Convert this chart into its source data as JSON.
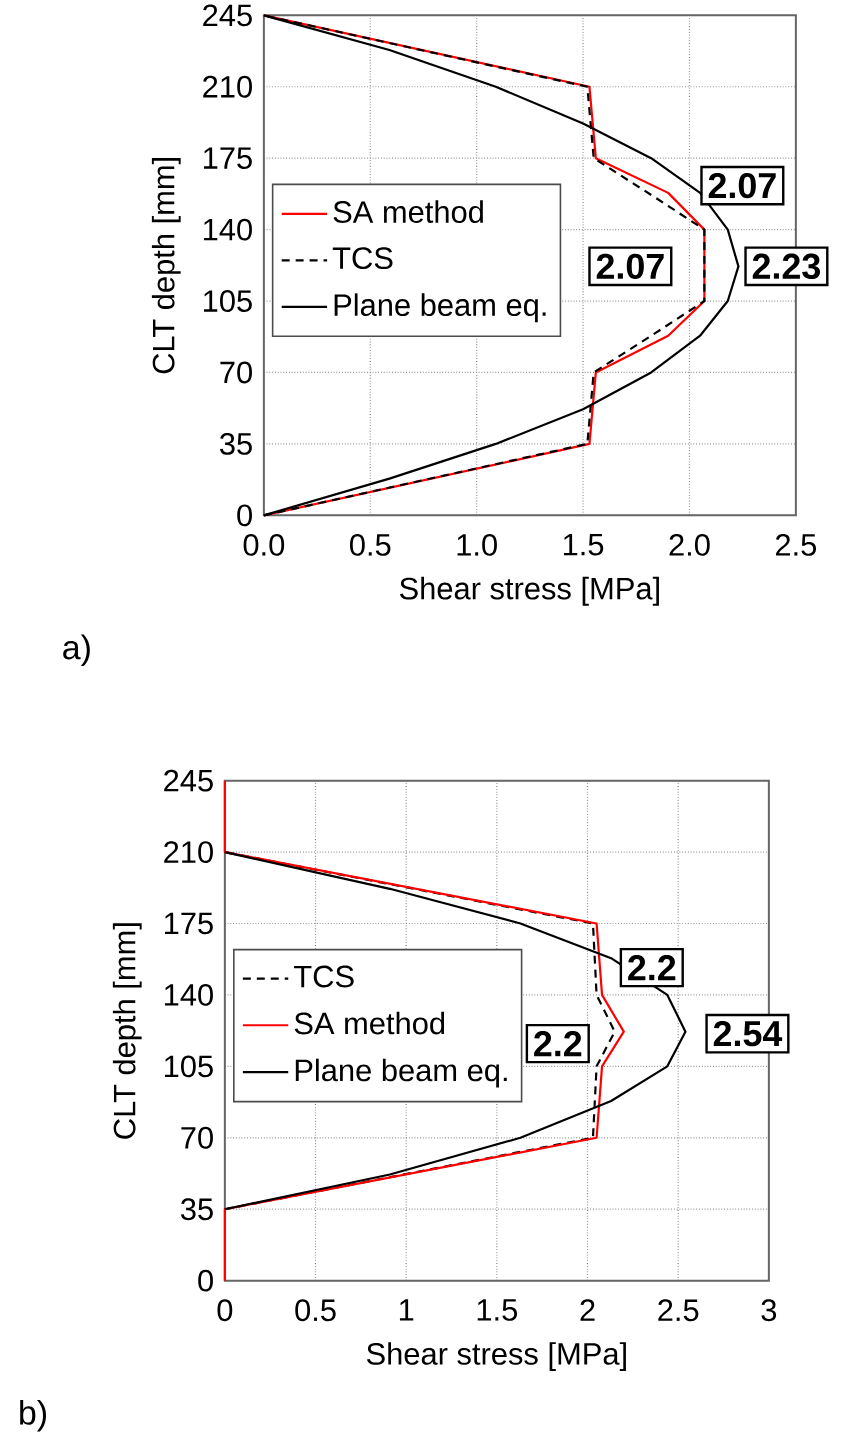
{
  "chart_data": [
    {
      "type": "line",
      "xlabel": "Shear stress [MPa]",
      "ylabel": "CLT depth [mm]",
      "xlim": [
        0,
        2.5
      ],
      "ylim": [
        0,
        245
      ],
      "xticks": [
        {
          "value": 0,
          "label": "0.0"
        },
        {
          "value": 0.5,
          "label": "0.5"
        },
        {
          "value": 1,
          "label": "1.0"
        },
        {
          "value": 1.5,
          "label": "1.5"
        },
        {
          "value": 2,
          "label": "2.0"
        },
        {
          "value": 2.5,
          "label": "2.5"
        }
      ],
      "yticks": [
        0,
        35,
        70,
        105,
        140,
        175,
        210,
        245
      ],
      "grid": true,
      "legend": "left",
      "series": [
        {
          "name": "SA method",
          "color": "#ff0000",
          "line_style": "solid",
          "x": [
            0,
            1.53,
            1.56,
            1.9,
            2.07,
            2.07,
            1.9,
            1.56,
            1.53,
            0
          ],
          "values": [
            0,
            35,
            70,
            88,
            105,
            140,
            158,
            175,
            210,
            245
          ]
        },
        {
          "name": "TCS",
          "color": "#000000",
          "line_style": "dashed",
          "x": [
            0,
            1.52,
            1.55,
            1.85,
            2.07,
            2.07,
            1.85,
            1.55,
            1.52,
            0
          ],
          "values": [
            0,
            35,
            70,
            90,
            105,
            140,
            155,
            175,
            210,
            245
          ]
        },
        {
          "name": "Plane beam eq.",
          "color": "#000000",
          "line_style": "solid",
          "x": [
            0,
            0.59,
            1.09,
            1.5,
            1.82,
            2.05,
            2.18,
            2.23,
            2.18,
            2.05,
            1.82,
            1.5,
            1.09,
            0.59,
            0
          ],
          "values": [
            0,
            18,
            35,
            52,
            70,
            88,
            105,
            122,
            140,
            158,
            175,
            192,
            210,
            228,
            245
          ]
        }
      ],
      "annotations": [
        {
          "text": "2.07",
          "x": 2.07,
          "y": 140
        },
        {
          "text": "2.07",
          "x": 2.07,
          "y": 122
        },
        {
          "text": "2.23",
          "x": 2.23,
          "y": 122
        },
        "a)"
      ]
    },
    {
      "type": "line",
      "xlabel": "Shear stress [MPa]",
      "ylabel": "CLT depth [mm]",
      "xlim": [
        0,
        3
      ],
      "ylim": [
        0,
        245
      ],
      "xticks": [
        0,
        0.5,
        1,
        1.5,
        2,
        2.5,
        3
      ],
      "yticks": [
        0,
        35,
        70,
        105,
        140,
        175,
        210,
        245
      ],
      "grid": true,
      "legend": "left",
      "series": [
        {
          "name": "TCS",
          "color": "#000000",
          "line_style": "dashed",
          "x": [
            0,
            2.03,
            2.05,
            2.15,
            2.05,
            2.03,
            0
          ],
          "values": [
            35,
            70,
            105,
            122,
            140,
            175,
            210
          ]
        },
        {
          "name": "SA method",
          "color": "#ff0000",
          "line_style": "solid",
          "x": [
            0,
            0,
            2.05,
            2.08,
            2.2,
            2.08,
            2.05,
            0,
            0
          ],
          "values": [
            0,
            35,
            70,
            105,
            122,
            140,
            175,
            210,
            245
          ]
        },
        {
          "name": "Plane beam eq.",
          "color": "#000000",
          "line_style": "solid",
          "x": [
            0,
            0.91,
            1.63,
            2.13,
            2.44,
            2.54,
            2.44,
            2.13,
            1.63,
            0.91,
            0
          ],
          "values": [
            35,
            52,
            70,
            88,
            105,
            122,
            140,
            158,
            175,
            192,
            210
          ]
        }
      ],
      "annotations": [
        {
          "text": "2.2",
          "x": 2.2,
          "y": 122
        },
        {
          "text": "2.2",
          "x": 2.2,
          "y": 122
        },
        {
          "text": "2.54",
          "x": 2.54,
          "y": 122
        },
        "b)"
      ]
    }
  ]
}
